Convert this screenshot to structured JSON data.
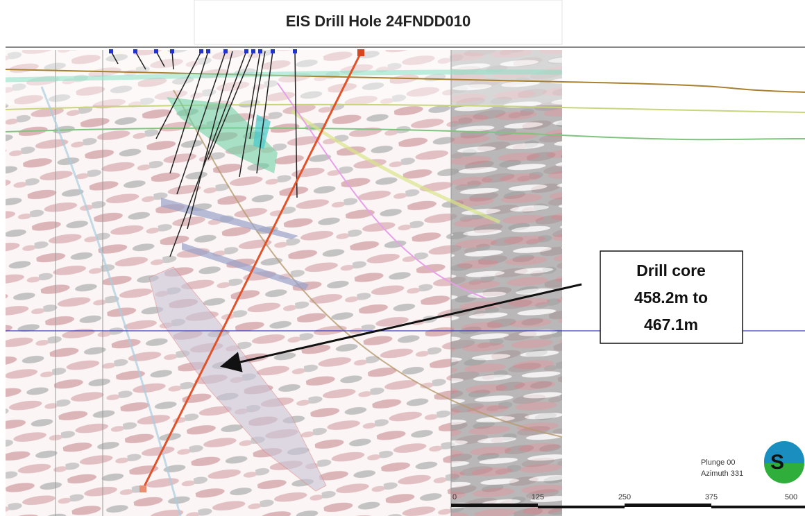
{
  "header": {
    "title": "EIS Drill Hole 24FNDD010"
  },
  "callout": {
    "lines": [
      "Drill core",
      "458.2m to",
      "467.1m"
    ]
  },
  "view": {
    "plunge": "Plunge 00",
    "azimuth": "Azimuth 331",
    "compass": "S"
  },
  "scale_bar": {
    "labels": [
      "0",
      "125",
      "250",
      "375",
      "500"
    ]
  }
}
